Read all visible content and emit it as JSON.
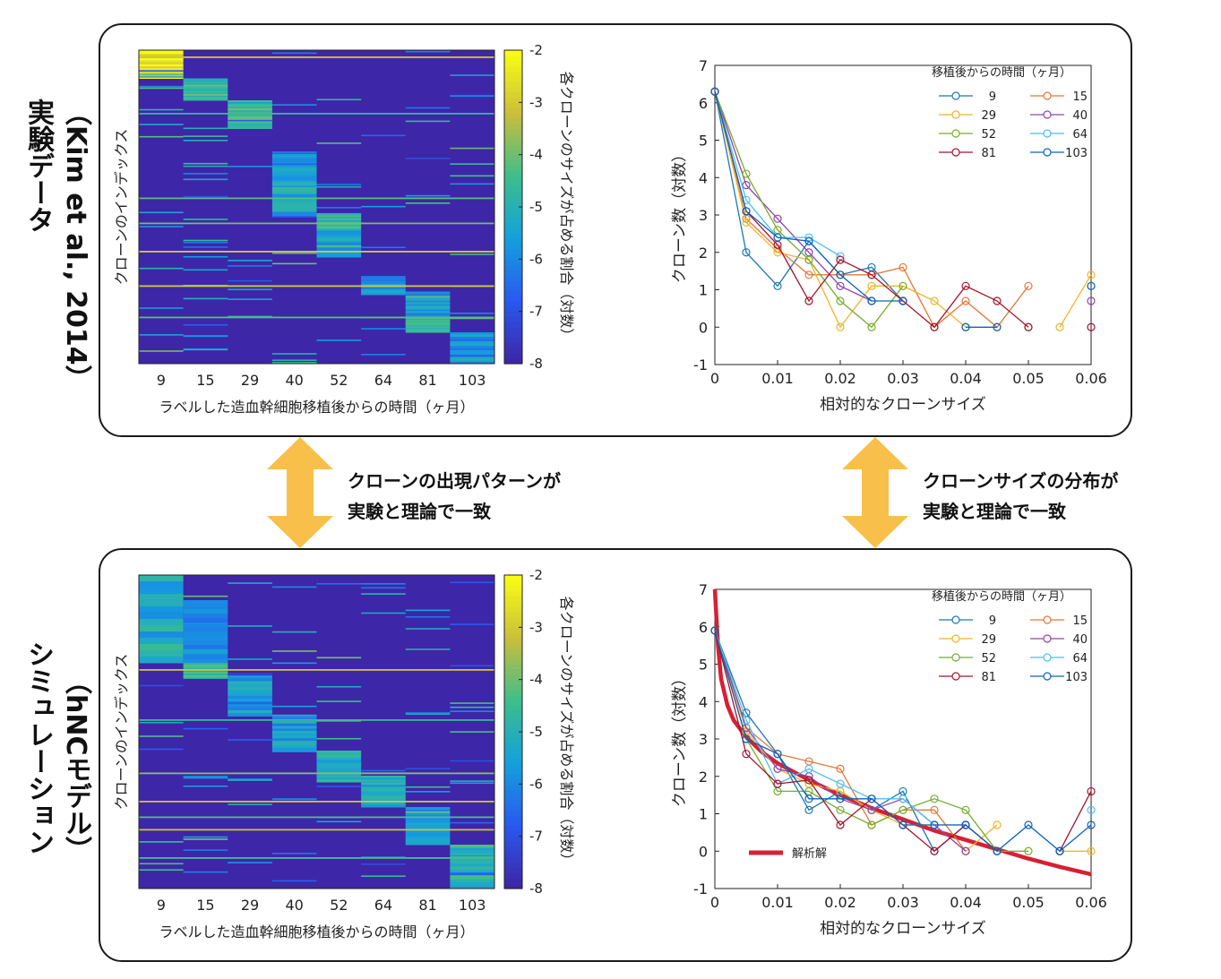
{
  "panels": [
    {
      "id": "top",
      "title_line1": "実験データ",
      "title_line2": "（Kim et al., 2014）"
    },
    {
      "id": "bottom",
      "title_line1": "シミュレーション",
      "title_line2": "（hNCモデル）"
    }
  ],
  "arrows": {
    "left_text_line1": "クローンの出現パターンが",
    "left_text_line2": "実験と理論で一致",
    "right_text_line1": "クローンサイズの分布が",
    "right_text_line2": "実験と理論で一致",
    "arrow_color": "#f8c04a"
  },
  "heatmap_common": {
    "categories": [
      "9",
      "15",
      "29",
      "40",
      "52",
      "64",
      "81",
      "103"
    ],
    "xlabel": "ラベルした造血幹細胞移植後からの時間（ヶ月）",
    "ylabel": "クローンのインデックス",
    "colorbar_label": "各クローンのサイズが占める割合（対数）",
    "colorbar_ticks": [
      "-2",
      "-3",
      "-4",
      "-5",
      "-6",
      "-7",
      "-8"
    ],
    "colorbar_range": [
      -8,
      -2
    ],
    "background_color": "#3b2f9a"
  },
  "scatter_common": {
    "xlabel": "相対的なクローンサイズ",
    "ylabel": "クローン数（対数）",
    "x_ticks": [
      "0",
      "0.01",
      "0.02",
      "0.03",
      "0.04",
      "0.05",
      "0.06"
    ],
    "y_ticks": [
      "-1",
      "0",
      "1",
      "2",
      "3",
      "4",
      "5",
      "6",
      "7"
    ],
    "legend_title": "移植後からの時間（ヶ月）",
    "legend_labels": [
      "9",
      "15",
      "29",
      "40",
      "52",
      "64",
      "81",
      "103"
    ],
    "analytic_label": "解析解"
  },
  "chart_data": [
    {
      "type": "heatmap",
      "panel": "top",
      "title": "",
      "categories": [
        "9",
        "15",
        "29",
        "40",
        "52",
        "64",
        "81",
        "103"
      ],
      "xlabel": "ラベルした造血幹細胞移植後からの時間（ヶ月）",
      "ylabel": "クローンのインデックス",
      "colorbar": {
        "label": "各クローンのサイズが占める割合（対数）",
        "range": [
          -8,
          -2
        ]
      }
    },
    {
      "type": "line",
      "panel": "top",
      "title": "",
      "xlabel": "相対的なクローンサイズ",
      "ylabel": "クローン数（対数）",
      "xlim": [
        0,
        0.06
      ],
      "ylim": [
        -1,
        7
      ],
      "x": [
        0,
        0.005,
        0.01,
        0.015,
        0.02,
        0.025,
        0.03,
        0.035,
        0.04,
        0.045,
        0.05,
        0.055,
        0.06
      ],
      "series": [
        {
          "name": "9",
          "color": "#1f77b4",
          "values": [
            6.3,
            2.0,
            1.1,
            2.3,
            1.4,
            1.6,
            0.7,
            null,
            null,
            null,
            null,
            null,
            null
          ]
        },
        {
          "name": "15",
          "color": "#e3773a",
          "values": [
            6.3,
            2.9,
            2.1,
            1.4,
            1.4,
            1.4,
            1.6,
            0.0,
            0.7,
            0.0,
            1.1,
            null,
            null
          ]
        },
        {
          "name": "29",
          "color": "#f0b429",
          "values": [
            6.3,
            2.8,
            2.0,
            1.8,
            0.0,
            1.1,
            1.1,
            0.7,
            0.0,
            null,
            null,
            0.0,
            1.4
          ]
        },
        {
          "name": "40",
          "color": "#8e44ad",
          "values": [
            6.3,
            3.8,
            2.9,
            2.0,
            1.1,
            0.7,
            null,
            null,
            null,
            null,
            null,
            null,
            0.7
          ]
        },
        {
          "name": "52",
          "color": "#77ac30",
          "values": [
            6.3,
            4.1,
            2.6,
            1.8,
            0.7,
            0.0,
            1.1,
            null,
            0.0,
            null,
            0.0,
            null,
            null
          ]
        },
        {
          "name": "64",
          "color": "#4dbeee",
          "values": [
            6.3,
            3.4,
            2.4,
            2.4,
            1.9,
            null,
            null,
            null,
            null,
            null,
            null,
            null,
            1.1
          ]
        },
        {
          "name": "81",
          "color": "#a2142f",
          "values": [
            6.3,
            3.1,
            2.2,
            0.7,
            1.8,
            1.4,
            0.7,
            0.0,
            1.1,
            0.7,
            0.0,
            null,
            0.0
          ]
        },
        {
          "name": "103",
          "color": "#0d63b8",
          "values": [
            6.3,
            3.1,
            2.4,
            2.3,
            1.4,
            0.7,
            0.7,
            null,
            0.0,
            0.0,
            null,
            null,
            1.1
          ]
        }
      ]
    },
    {
      "type": "heatmap",
      "panel": "bottom",
      "title": "",
      "categories": [
        "9",
        "15",
        "29",
        "40",
        "52",
        "64",
        "81",
        "103"
      ],
      "xlabel": "ラベルした造血幹細胞移植後からの時間（ヶ月）",
      "ylabel": "クローンのインデックス",
      "colorbar": {
        "label": "各クローンのサイズが占める割合（対数）",
        "range": [
          -8,
          -2
        ]
      }
    },
    {
      "type": "line",
      "panel": "bottom",
      "title": "",
      "xlabel": "相対的なクローンサイズ",
      "ylabel": "クローン数（対数）",
      "xlim": [
        0,
        0.06
      ],
      "ylim": [
        -1,
        7
      ],
      "x": [
        0,
        0.005,
        0.01,
        0.015,
        0.02,
        0.025,
        0.03,
        0.035,
        0.04,
        0.045,
        0.05,
        0.055,
        0.06
      ],
      "series": [
        {
          "name": "9",
          "color": "#1f77b4",
          "values": [
            5.9,
            3.7,
            2.6,
            1.1,
            1.6,
            1.1,
            1.6,
            0.0,
            0.7,
            0.0,
            null,
            null,
            null
          ]
        },
        {
          "name": "15",
          "color": "#e3773a",
          "values": [
            5.9,
            3.3,
            2.6,
            2.4,
            2.2,
            0.7,
            1.1,
            1.1,
            0.0,
            null,
            null,
            0.0,
            null
          ]
        },
        {
          "name": "29",
          "color": "#f0b429",
          "values": [
            5.9,
            3.2,
            2.2,
            1.8,
            1.6,
            1.1,
            0.7,
            0.7,
            0.0,
            0.7,
            null,
            0.0,
            0.0
          ]
        },
        {
          "name": "40",
          "color": "#8e44ad",
          "values": [
            5.9,
            3.3,
            2.2,
            2.0,
            1.4,
            1.1,
            1.4,
            0.7,
            0.0,
            null,
            null,
            0.0,
            null
          ]
        },
        {
          "name": "52",
          "color": "#77ac30",
          "values": [
            5.9,
            3.0,
            1.6,
            1.6,
            1.1,
            0.7,
            1.1,
            1.4,
            1.1,
            0.0,
            0.0,
            null,
            null
          ]
        },
        {
          "name": "64",
          "color": "#4dbeee",
          "values": [
            5.9,
            3.5,
            1.8,
            2.2,
            1.8,
            1.4,
            1.4,
            0.7,
            0.7,
            null,
            null,
            null,
            1.1
          ]
        },
        {
          "name": "81",
          "color": "#a2142f",
          "values": [
            5.9,
            2.6,
            1.8,
            1.9,
            0.7,
            1.4,
            0.7,
            0.0,
            0.7,
            0.0,
            null,
            0.0,
            1.6
          ]
        },
        {
          "name": "103",
          "color": "#0d63b8",
          "values": [
            5.9,
            3.0,
            2.6,
            1.4,
            1.4,
            1.4,
            0.7,
            0.7,
            0.7,
            0.0,
            0.7,
            0.0,
            0.7
          ]
        }
      ],
      "analytic": {
        "name": "解析解",
        "color": "#d62034",
        "x": [
          0,
          0.0005,
          0.001,
          0.002,
          0.003,
          0.005,
          0.0075,
          0.01,
          0.015,
          0.02,
          0.025,
          0.03,
          0.035,
          0.04,
          0.045,
          0.05,
          0.055,
          0.06
        ],
        "y": [
          7.0,
          5.5,
          4.6,
          3.9,
          3.5,
          3.05,
          2.65,
          2.35,
          1.9,
          1.5,
          1.15,
          0.85,
          0.55,
          0.3,
          0.05,
          -0.2,
          -0.42,
          -0.62
        ]
      }
    }
  ]
}
